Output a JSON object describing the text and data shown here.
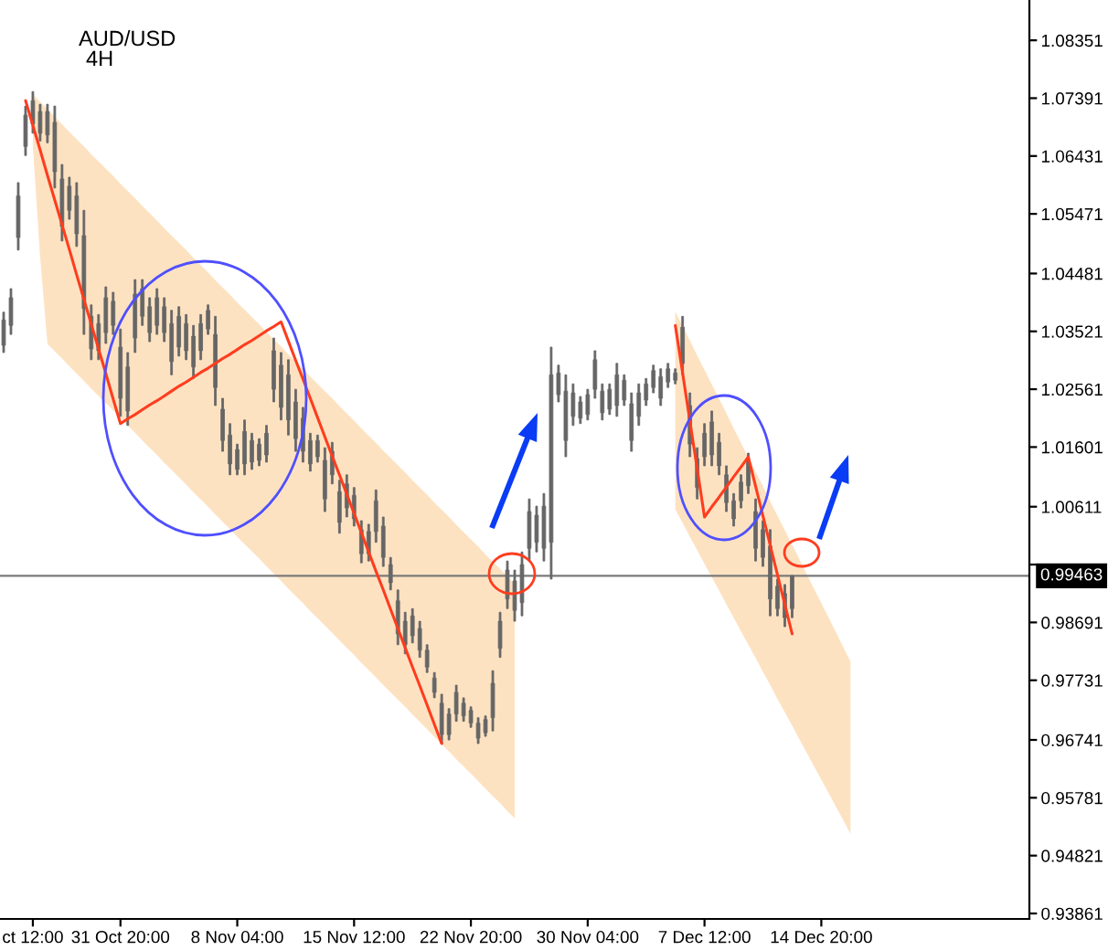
{
  "chart_data": {
    "type": "candlestick",
    "title": "AUD/USD",
    "subtitle": "4H",
    "categories": [
      null,
      null,
      null,
      null,
      "ct 12:00",
      null,
      null,
      null,
      null,
      null,
      null,
      null,
      null,
      null,
      null,
      null,
      "31 Oct 20:00",
      null,
      null,
      null,
      null,
      null,
      null,
      null,
      null,
      null,
      null,
      null,
      null,
      null,
      null,
      null,
      "8 Nov 04:00",
      null,
      null,
      null,
      null,
      null,
      null,
      null,
      null,
      null,
      null,
      null,
      null,
      null,
      null,
      null,
      "15 Nov 12:00",
      null,
      null,
      null,
      null,
      null,
      null,
      null,
      null,
      null,
      null,
      null,
      null,
      null,
      null,
      null,
      "22 Nov 20:00",
      null,
      null,
      null,
      null,
      null,
      null,
      null,
      null,
      null,
      null,
      null,
      null,
      null,
      null,
      null,
      "30 Nov 04:00",
      null,
      null,
      null,
      null,
      null,
      null,
      null,
      null,
      null,
      null,
      null,
      null,
      null,
      null,
      null,
      "7 Dec 12:00",
      null,
      null,
      null,
      null,
      null,
      null,
      null,
      null,
      null,
      null,
      null,
      null,
      null,
      null,
      null,
      "14 Dec 20:00",
      null,
      null,
      null,
      null,
      null,
      null,
      null,
      null,
      null,
      null,
      null,
      null,
      null,
      null,
      null,
      null,
      null,
      null,
      null,
      null,
      null,
      null,
      null,
      null,
      null,
      null,
      null,
      null
    ],
    "ohlc": [
      [
        1.0329,
        1.0384,
        1.0317,
        1.0371
      ],
      [
        1.0362,
        1.0423,
        1.0347,
        1.0408
      ],
      [
        1.0508,
        1.0599,
        1.0487,
        1.0577
      ],
      [
        1.0659,
        1.0726,
        1.0644,
        1.0711
      ],
      [
        1.0735,
        1.075,
        1.0681,
        1.0696
      ],
      [
        1.0717,
        1.0729,
        1.0668,
        1.0681
      ],
      [
        1.0717,
        1.0729,
        1.0665,
        1.0678
      ],
      [
        1.0699,
        1.0726,
        1.059,
        1.0617
      ],
      [
        1.0526,
        1.0629,
        1.0502,
        1.0605
      ],
      [
        1.0593,
        1.0608,
        1.0538,
        1.0553
      ],
      [
        1.0577,
        1.0599,
        1.0493,
        1.0514
      ],
      [
        1.0511,
        1.0553,
        1.0347,
        1.039
      ],
      [
        1.0377,
        1.0396,
        1.0305,
        1.0323
      ],
      [
        1.032,
        1.038,
        1.0305,
        1.0365
      ],
      [
        1.035,
        1.0426,
        1.0332,
        1.0408
      ],
      [
        1.0402,
        1.0417,
        1.0347,
        1.0362
      ],
      [
        1.0241,
        1.0356,
        1.0211,
        1.0326
      ],
      [
        1.022,
        1.0317,
        1.0196,
        1.0293
      ],
      [
        1.0341,
        1.0438,
        1.0317,
        1.0414
      ],
      [
        1.0423,
        1.0438,
        1.0362,
        1.0377
      ],
      [
        1.035,
        1.0408,
        1.0335,
        1.0393
      ],
      [
        1.0408,
        1.0423,
        1.0347,
        1.0362
      ],
      [
        1.0393,
        1.0408,
        1.0335,
        1.035
      ],
      [
        1.0302,
        1.0387,
        1.028,
        1.0365
      ],
      [
        1.0377,
        1.0393,
        1.0311,
        1.0326
      ],
      [
        1.0365,
        1.038,
        1.0305,
        1.032
      ],
      [
        1.0293,
        1.0362,
        1.0274,
        1.0344
      ],
      [
        1.032,
        1.038,
        1.0305,
        1.0365
      ],
      [
        1.0387,
        1.0396,
        1.0347,
        1.0356
      ],
      [
        1.0347,
        1.0377,
        1.0229,
        1.0259
      ],
      [
        1.0223,
        1.0241,
        1.0153,
        1.0171
      ],
      [
        1.018,
        1.0199,
        1.0114,
        1.0132
      ],
      [
        1.0123,
        1.0165,
        1.0114,
        1.0156
      ],
      [
        1.0186,
        1.0205,
        1.0114,
        1.0132
      ],
      [
        1.0171,
        1.0183,
        1.0123,
        1.0135
      ],
      [
        1.0138,
        1.0174,
        1.0129,
        1.0165
      ],
      [
        1.0147,
        1.0196,
        1.0135,
        1.0183
      ],
      [
        1.032,
        1.0341,
        1.0235,
        1.0256
      ],
      [
        1.0296,
        1.0317,
        1.0205,
        1.0226
      ],
      [
        1.028,
        1.0305,
        1.018,
        1.0205
      ],
      [
        1.0235,
        1.0256,
        1.0153,
        1.0174
      ],
      [
        1.0208,
        1.0226,
        1.0135,
        1.0153
      ],
      [
        1.0132,
        1.0183,
        1.012,
        1.0171
      ],
      [
        1.0171,
        1.018,
        1.0135,
        1.0144
      ],
      [
        1.0074,
        1.0159,
        1.0053,
        1.0138
      ],
      [
        1.0153,
        1.0168,
        1.0099,
        1.0114
      ],
      [
        1.0035,
        1.0105,
        1.0017,
        1.0086
      ],
      [
        1.0099,
        1.0114,
        1.0044,
        1.0059
      ],
      [
        1.008,
        1.0093,
        1.0029,
        1.0041
      ],
      [
        1.0023,
        1.0038,
        0.9968,
        0.9983
      ],
      [
        0.9983,
        1.0032,
        0.9971,
        1.002
      ],
      [
        1.0071,
        1.0089,
        1.0002,
        1.002
      ],
      [
        1.0029,
        1.0044,
        0.9962,
        0.9977
      ],
      [
        0.9965,
        0.9977,
        0.9923,
        0.9935
      ],
      [
        0.9905,
        0.9923,
        0.9832,
        0.985
      ],
      [
        0.9832,
        0.9886,
        0.9817,
        0.9871
      ],
      [
        0.988,
        0.9892,
        0.9835,
        0.9847
      ],
      [
        0.9859,
        0.9871,
        0.9811,
        0.9823
      ],
      [
        0.9823,
        0.9832,
        0.9786,
        0.9795
      ],
      [
        0.9777,
        0.9786,
        0.9744,
        0.9753
      ],
      [
        0.9683,
        0.975,
        0.9668,
        0.9735
      ],
      [
        0.9683,
        0.9726,
        0.9674,
        0.9717
      ],
      [
        0.9753,
        0.9765,
        0.9705,
        0.9717
      ],
      [
        0.9735,
        0.9744,
        0.9705,
        0.9714
      ],
      [
        0.9723,
        0.9729,
        0.9695,
        0.9702
      ],
      [
        0.9677,
        0.9711,
        0.9668,
        0.9702
      ],
      [
        0.9686,
        0.9714,
        0.968,
        0.9708
      ],
      [
        0.9711,
        0.9789,
        0.9689,
        0.9768
      ],
      [
        0.9826,
        0.9886,
        0.9811,
        0.9871
      ],
      [
        0.9956,
        0.9971,
        0.9892,
        0.9908
      ],
      [
        0.9889,
        0.9956,
        0.9871,
        0.9938
      ],
      [
        0.9902,
        0.9986,
        0.988,
        0.9965
      ],
      [
        1.0053,
        1.0074,
        0.9971,
        0.9992
      ],
      [
        1.0002,
        1.0062,
        0.9986,
        1.0047
      ],
      [
        0.9992,
        1.0083,
        0.9971,
        1.0062
      ],
      [
        1.0002,
        1.0326,
        0.9941,
        1.028
      ],
      [
        1.0283,
        1.0296,
        1.0235,
        1.0247
      ],
      [
        1.0171,
        1.028,
        1.0144,
        1.0253
      ],
      [
        1.025,
        1.0265,
        1.0196,
        1.0211
      ],
      [
        1.0208,
        1.0244,
        1.0199,
        1.0235
      ],
      [
        1.0214,
        1.0256,
        1.0205,
        1.0247
      ],
      [
        1.0305,
        1.032,
        1.0241,
        1.0256
      ],
      [
        1.0217,
        1.0265,
        1.0205,
        1.0253
      ],
      [
        1.0223,
        1.0265,
        1.0214,
        1.0256
      ],
      [
        1.028,
        1.0299,
        1.0211,
        1.0229
      ],
      [
        1.0271,
        1.028,
        1.0229,
        1.0238
      ],
      [
        1.0171,
        1.025,
        1.0153,
        1.0232
      ],
      [
        1.0211,
        1.0265,
        1.0196,
        1.025
      ],
      [
        1.0238,
        1.0274,
        1.0229,
        1.0265
      ],
      [
        1.0287,
        1.0296,
        1.025,
        1.0259
      ],
      [
        1.0241,
        1.029,
        1.0229,
        1.0277
      ],
      [
        1.029,
        1.0299,
        1.0259,
        1.0268
      ],
      [
        1.0271,
        1.029,
        1.0265,
        1.0283
      ],
      [
        1.0359,
        1.0377,
        1.028,
        1.0299
      ],
      [
        1.0229,
        1.025,
        1.0144,
        1.0165
      ],
      [
        1.0093,
        1.0159,
        1.0074,
        1.0141
      ],
      [
        1.0144,
        1.0199,
        1.0129,
        1.0183
      ],
      [
        1.0202,
        1.022,
        1.0129,
        1.0147
      ],
      [
        1.0168,
        1.0183,
        1.0114,
        1.0129
      ],
      [
        1.0114,
        1.0129,
        1.0053,
        1.0068
      ],
      [
        1.0041,
        1.0083,
        1.0029,
        1.0071
      ],
      [
        1.0071,
        1.0114,
        1.0059,
        1.0102
      ],
      [
        1.0138,
        1.015,
        1.0083,
        1.0096
      ],
      [
        1.0053,
        1.0074,
        0.9971,
        0.9992
      ],
      [
        1.0023,
        1.0038,
        0.9962,
        0.9977
      ],
      [
        0.9996,
        1.0023,
        0.988,
        0.9908
      ],
      [
        0.9929,
        0.9941,
        0.988,
        0.9892
      ],
      [
        0.9877,
        0.9932,
        0.9862,
        0.9917
      ],
      [
        0.9892,
        0.9947,
        0.9877,
        0.9946
      ],
      null,
      null,
      null,
      null,
      null,
      null,
      null,
      null,
      null,
      null,
      null,
      null,
      null,
      null,
      null,
      null,
      null,
      null,
      null,
      null,
      null,
      null,
      null,
      null,
      null,
      null,
      null,
      null,
      null,
      null,
      null,
      null
    ],
    "color": "#666666",
    "series": [
      {
        "type": "area",
        "color": "#fde2c2",
        "values": [
          null,
          null,
          null,
          null,
          null,
          null,
          null,
          null,
          null,
          null,
          null,
          null,
          null,
          null,
          null,
          null,
          null,
          null,
          null,
          null,
          null,
          null,
          null,
          null,
          null,
          null,
          null,
          null,
          null,
          null,
          null,
          null,
          null,
          null,
          null,
          null,
          null,
          null,
          null,
          null,
          null,
          null,
          null,
          null,
          null,
          null,
          null,
          null,
          null,
          null,
          null,
          null,
          null,
          null,
          null,
          null,
          null,
          null,
          null,
          null,
          null,
          null,
          null,
          null,
          null,
          null,
          null,
          null,
          null,
          null,
          null,
          null,
          null,
          null,
          null,
          null,
          null,
          null,
          null,
          null,
          null,
          null,
          null,
          null,
          null,
          null,
          null,
          null,
          null,
          null,
          null,
          null,
          null,
          null,
          null,
          null,
          null,
          null,
          null,
          null,
          null,
          null,
          null,
          null,
          null,
          null,
          null,
          null,
          null,
          null,
          null,
          null,
          null,
          null,
          null,
          null,
          null,
          null,
          null,
          null,
          null,
          null,
          null,
          null,
          null,
          null,
          null,
          null,
          null,
          null,
          null,
          null,
          null,
          null,
          null,
          null,
          null,
          null,
          null,
          null,
          null
        ],
        "lower": [
          null,
          null,
          null,
          null,
          1.0659,
          1.0475,
          1.0331,
          1.0319,
          1.0307,
          1.0294,
          1.0282,
          1.027,
          1.0257,
          1.0245,
          1.0233,
          1.0221,
          1.0208,
          1.0196,
          1.0184,
          1.0171,
          1.0159,
          1.0147,
          1.0134,
          1.0122,
          1.011,
          1.0098,
          1.0085,
          1.0073,
          1.0061,
          1.0048,
          1.0036,
          1.0024,
          1.0011,
          0.9999,
          0.9987,
          0.9975,
          0.9962,
          0.995,
          0.9938,
          0.9925,
          0.9913,
          0.9901,
          0.9888,
          0.9876,
          0.9864,
          0.9852,
          0.9839,
          0.9827,
          0.9815,
          0.9802,
          0.979,
          0.9778,
          0.9765,
          0.9753,
          0.9741,
          0.9729,
          0.9716,
          0.9704,
          0.9692,
          0.9679,
          0.9667,
          0.9655,
          0.9642,
          0.963,
          0.9618,
          0.9606,
          0.9593,
          0.9581,
          0.9569,
          0.9556,
          0.9544,
          null,
          null,
          null,
          null,
          null,
          null,
          null,
          null,
          null,
          null,
          null,
          null,
          null,
          null,
          null,
          null,
          null,
          null,
          null,
          null,
          null,
          1.0056,
          1.0034,
          1.0011,
          0.9989,
          0.9966,
          0.9944,
          0.9922,
          0.9899,
          0.9877,
          0.9854,
          0.9832,
          0.981,
          0.9787,
          0.9765,
          0.9742,
          0.972,
          0.9698,
          0.9675,
          0.9653,
          0.963,
          0.9608,
          0.9586,
          0.9563,
          0.9541,
          0.9518,
          null,
          null,
          null,
          null,
          null,
          null,
          null,
          null,
          null,
          null,
          null,
          null,
          null,
          null,
          null,
          null,
          null,
          null,
          null,
          null,
          null,
          null,
          null,
          null
        ],
        "upper": [
          null,
          null,
          null,
          null,
          1.0745,
          1.0733,
          1.072,
          1.0708,
          1.0696,
          1.0683,
          1.0671,
          1.0659,
          1.0646,
          1.0634,
          1.0622,
          1.061,
          1.0597,
          1.0585,
          1.0573,
          1.056,
          1.0548,
          1.0536,
          1.0523,
          1.0511,
          1.0499,
          1.0487,
          1.0474,
          1.0462,
          1.045,
          1.0437,
          1.0425,
          1.0413,
          1.04,
          1.0388,
          1.0376,
          1.0364,
          1.0351,
          1.0339,
          1.0327,
          1.0314,
          1.0302,
          1.029,
          1.0277,
          1.0265,
          1.0253,
          1.0241,
          1.0228,
          1.0216,
          1.0204,
          1.0191,
          1.0179,
          1.0167,
          1.0154,
          1.0142,
          1.013,
          1.0118,
          1.0105,
          1.0093,
          1.0081,
          1.0068,
          1.0056,
          1.0044,
          1.0031,
          1.0019,
          1.0007,
          0.9995,
          0.9982,
          0.997,
          0.9958,
          0.9945,
          0.9933,
          null,
          null,
          null,
          null,
          null,
          null,
          null,
          null,
          null,
          null,
          null,
          null,
          null,
          null,
          null,
          null,
          null,
          null,
          null,
          null,
          null,
          1.0385,
          1.0361,
          1.0337,
          1.0312,
          1.0288,
          1.0264,
          1.024,
          1.0216,
          1.0191,
          1.0167,
          1.0143,
          1.0119,
          1.0095,
          1.007,
          1.0046,
          1.0022,
          0.9998,
          0.9974,
          0.9949,
          0.9925,
          0.9901,
          0.9877,
          0.9853,
          0.9828,
          0.9804,
          null,
          null,
          null,
          null,
          null,
          null,
          null,
          null,
          null,
          null,
          null,
          null,
          null,
          null,
          null,
          null,
          null,
          null,
          null,
          null,
          null,
          null,
          null,
          null
        ]
      },
      {
        "type": "line",
        "color": "#ff3c1e",
        "values": [
          null,
          null,
          null,
          1.0735,
          1.0694,
          1.0653,
          1.0611,
          1.057,
          1.0529,
          1.0488,
          1.0446,
          1.0405,
          1.0364,
          1.0323,
          1.0282,
          1.024,
          1.0199,
          1.0207,
          1.0214,
          1.0222,
          1.023,
          1.0237,
          1.0245,
          1.0253,
          1.0261,
          1.0268,
          1.0276,
          1.0284,
          1.0291,
          1.0299,
          1.0307,
          1.0314,
          1.0322,
          1.033,
          1.0337,
          1.0345,
          1.0353,
          1.036,
          1.0368,
          1.0336,
          1.0304,
          1.0273,
          1.0241,
          1.0209,
          1.0177,
          1.0145,
          1.0114,
          1.0082,
          1.005,
          1.0018,
          0.9986,
          0.9954,
          0.9923,
          0.9891,
          0.9859,
          0.9827,
          0.9795,
          0.9764,
          0.9732,
          0.97,
          0.9668,
          null,
          null,
          null,
          null,
          null,
          null,
          null,
          null,
          null,
          null,
          null,
          null,
          null,
          null,
          null,
          null,
          null,
          null,
          null,
          null,
          null,
          null,
          null,
          null,
          null,
          null,
          null,
          null,
          null,
          null,
          null,
          1.0362,
          1.0283,
          1.0203,
          1.0124,
          1.0044,
          1.0061,
          1.0077,
          1.0094,
          1.0111,
          1.0127,
          1.0144,
          1.0095,
          1.0046,
          0.9997,
          0.9948,
          0.9899,
          0.985,
          null,
          null,
          null,
          null,
          null,
          null,
          null,
          null,
          null,
          null,
          null,
          null,
          null,
          null,
          null,
          null,
          null,
          null,
          null,
          null,
          null,
          null,
          null,
          null,
          null,
          null,
          null,
          null,
          null,
          null,
          null,
          null
        ]
      }
    ],
    "ylim": [
      0.9377,
      1.0902
    ],
    "yticks": [
      1.08351,
      1.07391,
      1.06431,
      1.05471,
      1.04481,
      1.03521,
      1.02561,
      1.01601,
      1.00611,
      {
        "value": 0.99651,
        "label": null
      },
      0.98691,
      0.97731,
      0.96741,
      0.95781,
      0.94821,
      0.93861
    ],
    "ref_lines": [
      {
        "axis": "y",
        "value": 0.99463,
        "label": "0.99463",
        "color": "#7a7a7a"
      }
    ]
  }
}
